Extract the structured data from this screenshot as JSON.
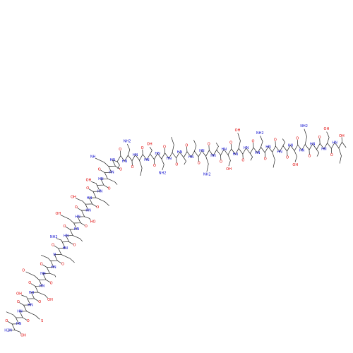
{
  "molecule": {
    "residues": [
      {
        "amide": "H2N",
        "carbonyl": "O",
        "side": "OH"
      },
      {
        "amide": "HN",
        "carbonyl": "O"
      },
      {
        "amide": "HN",
        "carbonyl": "O",
        "side": "S"
      },
      {
        "amide": "HN",
        "carbonyl": "O",
        "side": "OH"
      },
      {
        "amide": "HN",
        "carbonyl": "O",
        "side": "OH"
      },
      {
        "amide": "HN",
        "carbonyl": "O",
        "side": "O"
      },
      {
        "amide": "HN",
        "carbonyl": "O"
      },
      {
        "amide": "HN",
        "carbonyl": "O"
      },
      {
        "amide": "N",
        "carbonyl": "O"
      },
      {
        "amide": "HN",
        "carbonyl": "O",
        "side": "NH2"
      },
      {
        "amide": "HN",
        "carbonyl": "O"
      },
      {
        "amide": "HN",
        "carbonyl": "O",
        "side": "OH"
      },
      {
        "amide": "HN",
        "carbonyl": "O",
        "side": "HO"
      },
      {
        "amide": "HN",
        "carbonyl": "O",
        "side": "OH"
      },
      {
        "amide": "HN",
        "carbonyl": "O"
      },
      {
        "amide": "HN",
        "carbonyl": "O",
        "side": "OH"
      },
      {
        "amide": "HN",
        "carbonyl": "O"
      },
      {
        "amide": "HN",
        "carbonyl": "O",
        "side": "NH"
      },
      {
        "amide": "HN",
        "carbonyl": "O"
      },
      {
        "amide": "HN",
        "carbonyl": "O",
        "side": "NH2"
      },
      {
        "amide": "HN",
        "carbonyl": "O"
      },
      {
        "amide": "HN",
        "carbonyl": "O",
        "side": "OH"
      },
      {
        "amide": "HN",
        "carbonyl": "O",
        "side": "NH2"
      },
      {
        "amide": "HN",
        "carbonyl": "O"
      },
      {
        "amide": "HN",
        "carbonyl": "O"
      },
      {
        "amide": "HN",
        "carbonyl": "O"
      },
      {
        "amide": "HN",
        "carbonyl": "O",
        "side": "NH2"
      },
      {
        "amide": "HN",
        "carbonyl": "O"
      },
      {
        "amide": "HN",
        "carbonyl": "O",
        "side": "OH"
      },
      {
        "amide": "HN",
        "carbonyl": "O",
        "side": "OH"
      },
      {
        "amide": "HN",
        "carbonyl": "O"
      },
      {
        "amide": "HN",
        "carbonyl": "O",
        "side": "NH2"
      },
      {
        "amide": "HN",
        "carbonyl": "O"
      },
      {
        "amide": "HN",
        "carbonyl": "O"
      },
      {
        "amide": "HN",
        "carbonyl": "O",
        "side": "OH"
      },
      {
        "amide": "HN",
        "carbonyl": "O",
        "side": "NH2"
      },
      {
        "amide": "HN",
        "carbonyl": "O"
      },
      {
        "amide": "HN",
        "carbonyl": "O",
        "side": "OH"
      },
      {
        "amide": "HN",
        "carbonyl": "OH"
      }
    ]
  }
}
